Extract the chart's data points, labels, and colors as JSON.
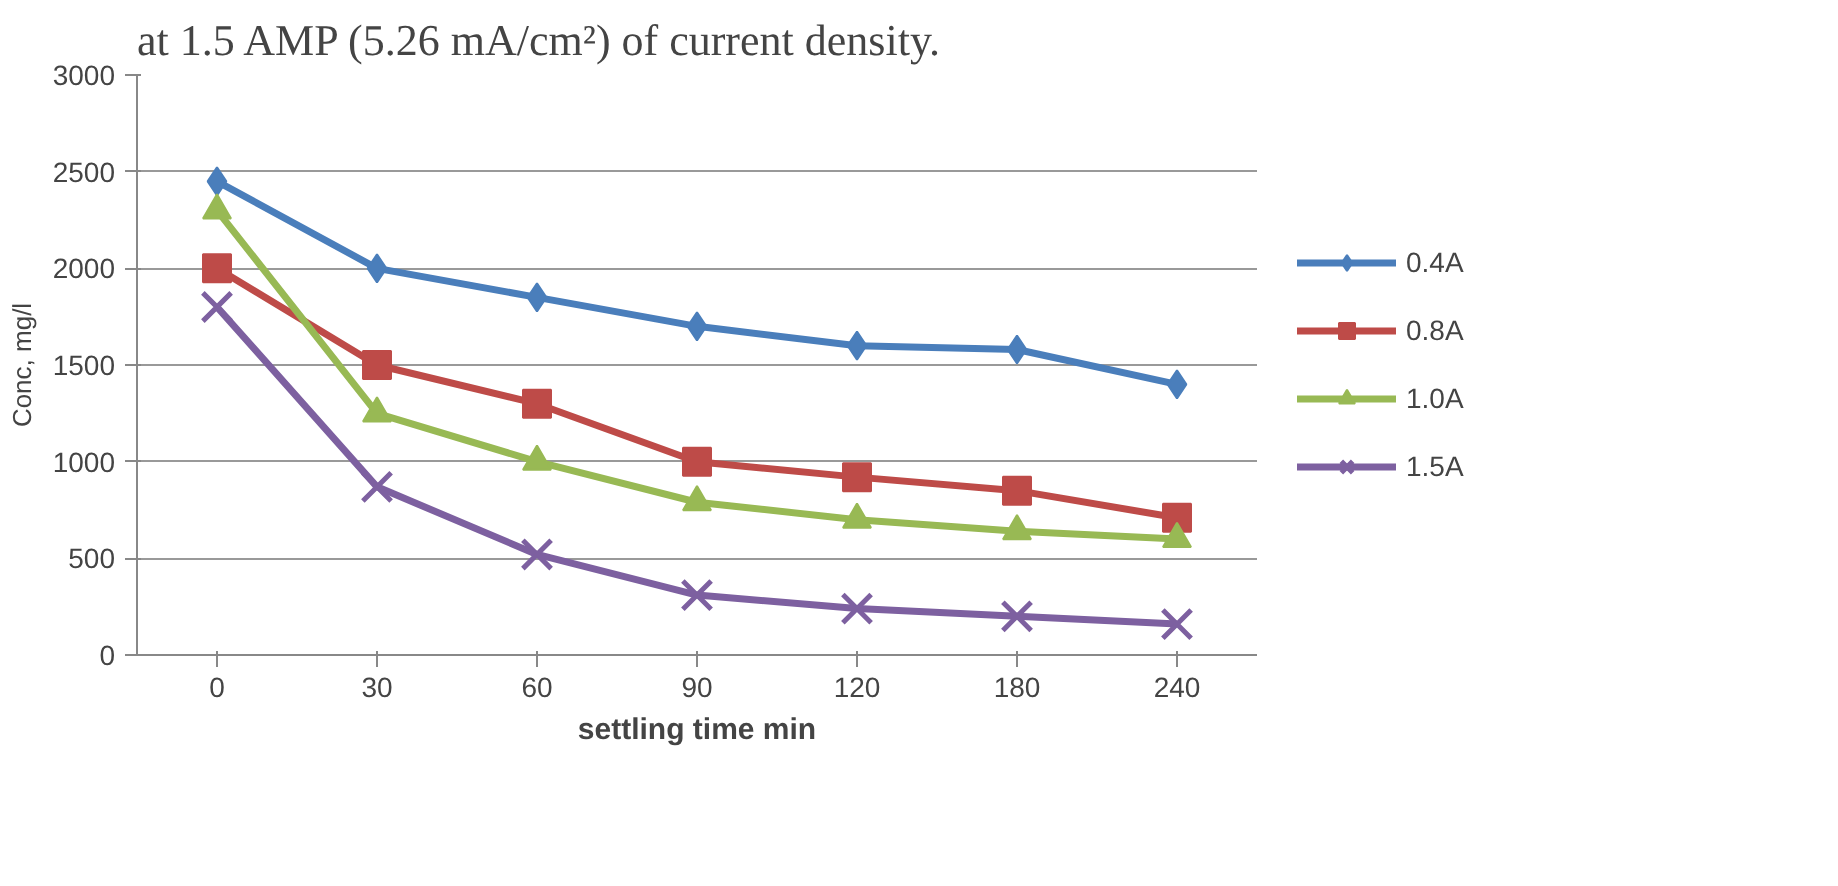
{
  "chart_data": {
    "type": "line",
    "annotations": [
      "at 1.5 AMP (5.26 mA/cm²) of current density."
    ],
    "xlabel": "settling time min",
    "ylabel": "Conc, mg/l",
    "categories": [
      "0",
      "30",
      "60",
      "90",
      "120",
      "180",
      "240"
    ],
    "ylim": [
      0,
      3000
    ],
    "yticks": [
      0,
      500,
      1000,
      1500,
      2000,
      2500,
      3000
    ],
    "grid": "y",
    "legend": "right",
    "series": [
      {
        "name": "0.4A",
        "color": "#4a7ebb",
        "marker": "diamond",
        "values": [
          2450,
          2000,
          1850,
          1700,
          1600,
          1580,
          1400
        ]
      },
      {
        "name": "0.8A",
        "color": "#be4b48",
        "marker": "square",
        "values": [
          2000,
          1500,
          1300,
          1000,
          920,
          850,
          710
        ]
      },
      {
        "name": "1.0A",
        "color": "#98b954",
        "marker": "triangle",
        "values": [
          2300,
          1250,
          1000,
          790,
          700,
          640,
          600
        ]
      },
      {
        "name": "1.5A",
        "color": "#7d60a0",
        "marker": "cross",
        "values": [
          1800,
          870,
          520,
          310,
          240,
          200,
          160
        ]
      }
    ]
  }
}
